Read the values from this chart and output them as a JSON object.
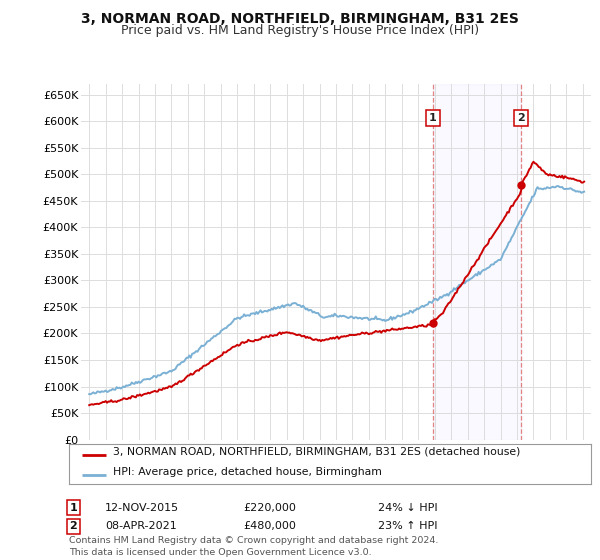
{
  "title": "3, NORMAN ROAD, NORTHFIELD, BIRMINGHAM, B31 2ES",
  "subtitle": "Price paid vs. HM Land Registry's House Price Index (HPI)",
  "title_fontsize": 10,
  "subtitle_fontsize": 9,
  "background_color": "#ffffff",
  "grid_color": "#dddddd",
  "sale1_date_x": 2015.87,
  "sale1_price": 220000,
  "sale2_date_x": 2021.27,
  "sale2_price": 480000,
  "property_color": "#cc0000",
  "hpi_color": "#7ab0d4",
  "ylim_min": 0,
  "ylim_max": 670000,
  "xlim_min": 1994.5,
  "xlim_max": 2025.5,
  "legend_property": "3, NORMAN ROAD, NORTHFIELD, BIRMINGHAM, B31 2ES (detached house)",
  "legend_hpi": "HPI: Average price, detached house, Birmingham",
  "annotation1_date": "12-NOV-2015",
  "annotation1_price": "£220,000",
  "annotation1_hpi": "24% ↓ HPI",
  "annotation2_date": "08-APR-2021",
  "annotation2_price": "£480,000",
  "annotation2_hpi": "23% ↑ HPI",
  "footer": "Contains HM Land Registry data © Crown copyright and database right 2024.\nThis data is licensed under the Open Government Licence v3.0."
}
